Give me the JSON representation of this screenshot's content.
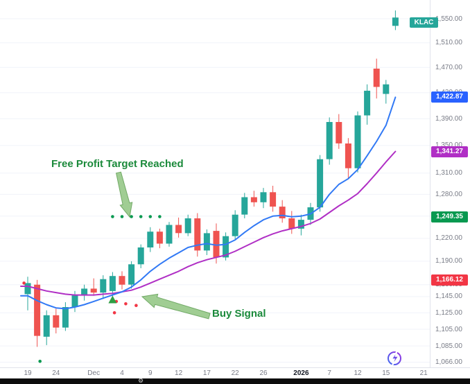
{
  "symbol_label": {
    "text": "KLAC",
    "price": 1544,
    "bg": "#26a69a"
  },
  "annotations": {
    "profit_target": "Free Profit Target Reached",
    "buy_signal": "Buy Signal",
    "text_color": "#1b8a3b"
  },
  "price_labels": [
    {
      "name": "fast-ma-value",
      "text": "1,422.87",
      "price": 1422.87,
      "bg": "#2962ff"
    },
    {
      "name": "slow-ma-value",
      "text": "1,341.27",
      "price": 1341.27,
      "bg": "#b02fc5"
    },
    {
      "name": "profit-target-value",
      "text": "1,249.35",
      "price": 1249.35,
      "bg": "#089950"
    },
    {
      "name": "stop-level-value",
      "text": "1,166.12",
      "price": 1166.12,
      "bg": "#f23645"
    }
  ],
  "icons": {
    "settings_gear": "⚙",
    "flash_logo": "lightning-in-circle"
  },
  "chart_data": {
    "type": "candlestick",
    "symbol": "KLAC",
    "legend_position": "none",
    "grid": "horizontal-only",
    "y_axis": {
      "scale": "log",
      "min": 1060,
      "max": 1582,
      "ticks": [
        {
          "label": "1,550.00",
          "p": 1550
        },
        {
          "label": "1,510.00",
          "p": 1510
        },
        {
          "label": "1,470.00",
          "p": 1470
        },
        {
          "label": "1,430.00",
          "p": 1430
        },
        {
          "label": "1,390.00",
          "p": 1390
        },
        {
          "label": "1,350.00",
          "p": 1350
        },
        {
          "label": "1,310.00",
          "p": 1310
        },
        {
          "label": "1,280.00",
          "p": 1280
        },
        {
          "label": "1,250.00",
          "p": 1250
        },
        {
          "label": "1,220.00",
          "p": 1220
        },
        {
          "label": "1,190.00",
          "p": 1190
        },
        {
          "label": "1,160.00",
          "p": 1160
        },
        {
          "label": "1,145.00",
          "p": 1145
        },
        {
          "label": "1,125.00",
          "p": 1125
        },
        {
          "label": "1,105.00",
          "p": 1105
        },
        {
          "label": "1,085.00",
          "p": 1085
        },
        {
          "label": "1,066.00",
          "p": 1066
        }
      ]
    },
    "x_ticks": [
      {
        "label": "19",
        "i": 0
      },
      {
        "label": "24",
        "i": 3
      },
      {
        "label": "Dec",
        "i": 7
      },
      {
        "label": "4",
        "i": 10
      },
      {
        "label": "9",
        "i": 13
      },
      {
        "label": "12",
        "i": 16
      },
      {
        "label": "17",
        "i": 19
      },
      {
        "label": "22",
        "i": 22
      },
      {
        "label": "26",
        "i": 25
      },
      {
        "label": "2026",
        "i": 29,
        "bold": true
      },
      {
        "label": "7",
        "i": 32
      },
      {
        "label": "12",
        "i": 35
      },
      {
        "label": "15",
        "i": 38
      },
      {
        "label": "21",
        "i": 42
      }
    ],
    "colors": {
      "up": "#26a69a",
      "down": "#ef5350"
    },
    "candles_ohlc": [
      [
        1148,
        1170,
        1128,
        1162
      ],
      [
        1160,
        1166,
        1084,
        1097
      ],
      [
        1096,
        1128,
        1086,
        1122
      ],
      [
        1122,
        1130,
        1100,
        1107
      ],
      [
        1107,
        1138,
        1103,
        1132
      ],
      [
        1132,
        1152,
        1126,
        1147
      ],
      [
        1147,
        1160,
        1140,
        1155
      ],
      [
        1155,
        1168,
        1146,
        1150
      ],
      [
        1150,
        1172,
        1142,
        1167
      ],
      [
        1152,
        1176,
        1145,
        1171
      ],
      [
        1171,
        1177,
        1154,
        1160
      ],
      [
        1160,
        1190,
        1155,
        1186
      ],
      [
        1186,
        1212,
        1181,
        1208
      ],
      [
        1208,
        1235,
        1202,
        1229
      ],
      [
        1229,
        1233,
        1207,
        1213
      ],
      [
        1213,
        1242,
        1209,
        1238
      ],
      [
        1238,
        1248,
        1221,
        1227
      ],
      [
        1227,
        1252,
        1223,
        1247
      ],
      [
        1247,
        1254,
        1196,
        1204
      ],
      [
        1204,
        1232,
        1198,
        1227
      ],
      [
        1230,
        1240,
        1187,
        1195
      ],
      [
        1195,
        1228,
        1191,
        1223
      ],
      [
        1223,
        1258,
        1219,
        1252
      ],
      [
        1252,
        1282,
        1247,
        1276
      ],
      [
        1276,
        1285,
        1263,
        1269
      ],
      [
        1269,
        1289,
        1261,
        1283
      ],
      [
        1283,
        1292,
        1256,
        1263
      ],
      [
        1263,
        1272,
        1241,
        1247
      ],
      [
        1247,
        1257,
        1226,
        1233
      ],
      [
        1233,
        1252,
        1224,
        1245
      ],
      [
        1245,
        1268,
        1238,
        1262
      ],
      [
        1262,
        1336,
        1256,
        1330
      ],
      [
        1330,
        1392,
        1322,
        1385
      ],
      [
        1385,
        1397,
        1345,
        1353
      ],
      [
        1353,
        1361,
        1301,
        1317
      ],
      [
        1317,
        1401,
        1311,
        1395
      ],
      [
        1395,
        1443,
        1381,
        1433
      ],
      [
        1468,
        1484,
        1421,
        1439
      ],
      [
        1428,
        1450,
        1413,
        1443
      ],
      [
        1538,
        1564,
        1531,
        1552
      ]
    ],
    "overlays": {
      "fast_ma": {
        "color": "#3179f5",
        "last_value": 1422.87,
        "values": [
          1146,
          1140,
          1135,
          1131,
          1130,
          1132,
          1135,
          1139,
          1143,
          1147,
          1151,
          1157,
          1166,
          1177,
          1186,
          1194,
          1201,
          1208,
          1211,
          1213,
          1211,
          1212,
          1218,
          1228,
          1237,
          1245,
          1250,
          1251,
          1249,
          1250,
          1253,
          1262,
          1280,
          1294,
          1302,
          1315,
          1335,
          1356,
          1380,
          1422.87
        ]
      },
      "slow_ma": {
        "color": "#b02fc5",
        "last_value": 1341.27,
        "values": [
          1158,
          1155,
          1152,
          1150,
          1148,
          1147,
          1147,
          1147,
          1148,
          1149,
          1151,
          1153,
          1157,
          1162,
          1167,
          1172,
          1177,
          1183,
          1188,
          1192,
          1195,
          1198,
          1203,
          1209,
          1215,
          1221,
          1226,
          1230,
          1233,
          1236,
          1240,
          1246,
          1255,
          1264,
          1272,
          1281,
          1295,
          1310,
          1326,
          1341.27
        ]
      },
      "target_dots": {
        "color": "#089950",
        "price": 1249.35,
        "from_i": 9,
        "to_i": 14
      },
      "red_dots": [
        {
          "i": -0.4,
          "p": 1162
        },
        {
          "i": 9.2,
          "p": 1125
        },
        {
          "i": 9.4,
          "p": 1139
        },
        {
          "i": 10.4,
          "p": 1136
        },
        {
          "i": 11.5,
          "p": 1134
        }
      ],
      "green_dots": [
        {
          "i": 1.3,
          "p": 1067
        }
      ],
      "buy_marker": {
        "i": 9,
        "p": 1141,
        "color": "#2f9e44",
        "shape": "triangle-up"
      }
    }
  }
}
